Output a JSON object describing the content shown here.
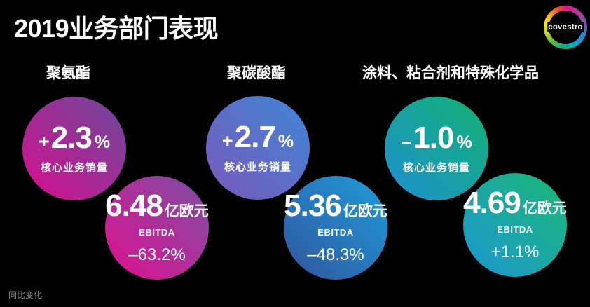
{
  "page": {
    "title": "2019业务部门表现",
    "logo_text": "covestro",
    "footnote": "同比变化",
    "background_color": "#000000",
    "text_color": "#ffffff"
  },
  "segments": [
    {
      "name": "聚氨酯",
      "volume": {
        "sign": "+",
        "value": "2.3",
        "unit": "%",
        "label": "核心业务销量"
      },
      "ebitda": {
        "value": "6.48",
        "unit": "亿欧元",
        "label": "EBITDA",
        "change": "–63.2%"
      },
      "gradient_volume": [
        "#d60f8d",
        "#6b4a9c"
      ],
      "gradient_ebitda": [
        "#e0108e",
        "#7b4fa5"
      ]
    },
    {
      "name": "聚碳酸酯",
      "volume": {
        "sign": "+",
        "value": "2.7",
        "unit": "%",
        "label": "核心业务销量"
      },
      "ebitda": {
        "value": "5.36",
        "unit": "亿欧元",
        "label": "EBITDA",
        "change": "–48.3%"
      },
      "gradient_volume": [
        "#7a58ba",
        "#3e86d6"
      ],
      "gradient_ebitda": [
        "#31549e",
        "#1f9cd9"
      ]
    },
    {
      "name": "涂料、粘合剂和特殊化学品",
      "volume": {
        "sign": "–",
        "value": "1.0",
        "unit": "%",
        "label": "核心业务销量"
      },
      "ebitda": {
        "value": "4.69",
        "unit": "亿欧元",
        "label": "EBITDA",
        "change": "+1.1%"
      },
      "gradient_volume": [
        "#1e90d2",
        "#12b170"
      ],
      "gradient_ebitda": [
        "#1b96d2",
        "#1db874"
      ]
    }
  ],
  "chart_data": {
    "type": "table",
    "title": "2019业务部门表现",
    "categories": [
      "聚氨酯",
      "聚碳酸酯",
      "涂料、粘合剂和特殊化学品"
    ],
    "series": [
      {
        "name": "核心业务销量同比变化(%)",
        "values": [
          2.3,
          2.7,
          -1.0
        ]
      },
      {
        "name": "EBITDA(亿欧元)",
        "values": [
          6.48,
          5.36,
          4.69
        ]
      },
      {
        "name": "EBITDA同比变化(%)",
        "values": [
          -63.2,
          -48.3,
          1.1
        ]
      }
    ],
    "footnote": "同比变化"
  }
}
